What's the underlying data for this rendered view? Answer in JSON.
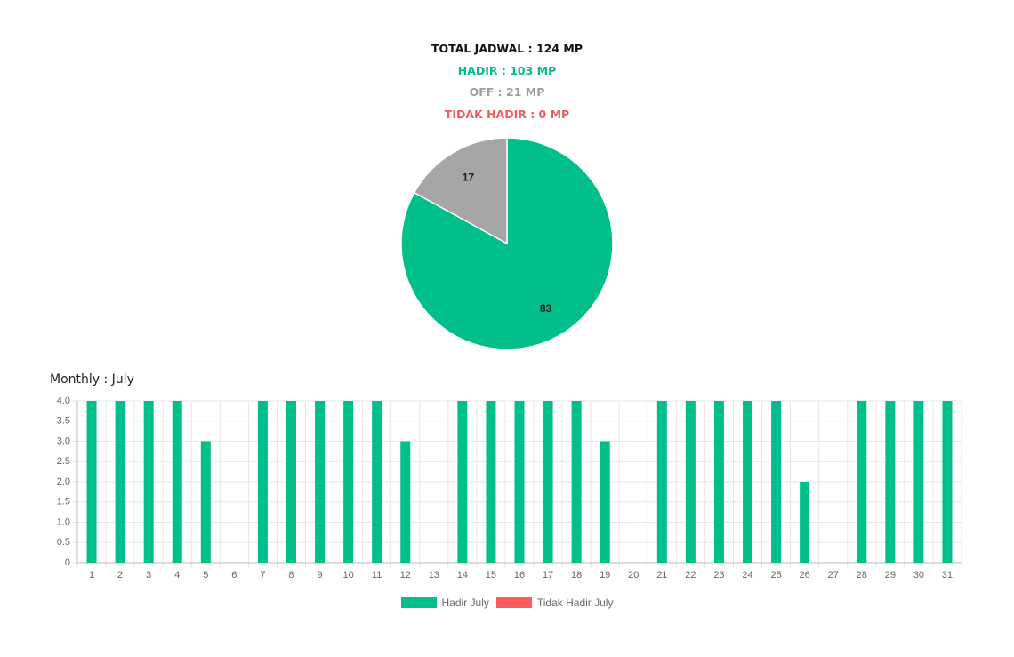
{
  "summary": {
    "total": "TOTAL JADWAL : 124 MP",
    "hadir": "HADIR : 103 MP",
    "off": "OFF : 21 MP",
    "tidak_hadir": "TIDAK HADIR : 0 MP"
  },
  "colors": {
    "hadir": "#00bf8a",
    "off": "#a6a6a6",
    "tidak_hadir": "#ff5b5b",
    "grid": "#e6e6e6",
    "axis_text": "#666666"
  },
  "monthly_title": "Monthly : July",
  "chart_data": [
    {
      "type": "pie",
      "slices": [
        {
          "label": "Hadir",
          "value": 83,
          "color": "#00bf8a"
        },
        {
          "label": "Off",
          "value": 17,
          "color": "#a6a6a6"
        }
      ],
      "data_labels": [
        "83",
        "17"
      ]
    },
    {
      "type": "bar",
      "categories": [
        "1",
        "2",
        "3",
        "4",
        "5",
        "6",
        "7",
        "8",
        "9",
        "10",
        "11",
        "12",
        "13",
        "14",
        "15",
        "16",
        "17",
        "18",
        "19",
        "20",
        "21",
        "22",
        "23",
        "24",
        "25",
        "26",
        "27",
        "28",
        "29",
        "30",
        "31"
      ],
      "series": [
        {
          "name": "Hadir July",
          "color": "#00bf8a",
          "values": [
            4,
            4,
            4,
            4,
            3,
            0,
            4,
            4,
            4,
            4,
            4,
            3,
            0,
            4,
            4,
            4,
            4,
            4,
            3,
            0,
            4,
            4,
            4,
            4,
            4,
            2,
            0,
            4,
            4,
            4,
            4
          ]
        },
        {
          "name": "Tidak Hadir July",
          "color": "#ff5b5b",
          "values": [
            0,
            0,
            0,
            0,
            0,
            0,
            0,
            0,
            0,
            0,
            0,
            0,
            0,
            0,
            0,
            0,
            0,
            0,
            0,
            0,
            0,
            0,
            0,
            0,
            0,
            0,
            0,
            0,
            0,
            0,
            0
          ]
        }
      ],
      "ylim": [
        0,
        4
      ],
      "y_ticks": [
        "0",
        "0.5",
        "1.0",
        "1.5",
        "2.0",
        "2.5",
        "3.0",
        "3.5",
        "4.0"
      ],
      "grid": true,
      "legend": "bottom"
    }
  ]
}
